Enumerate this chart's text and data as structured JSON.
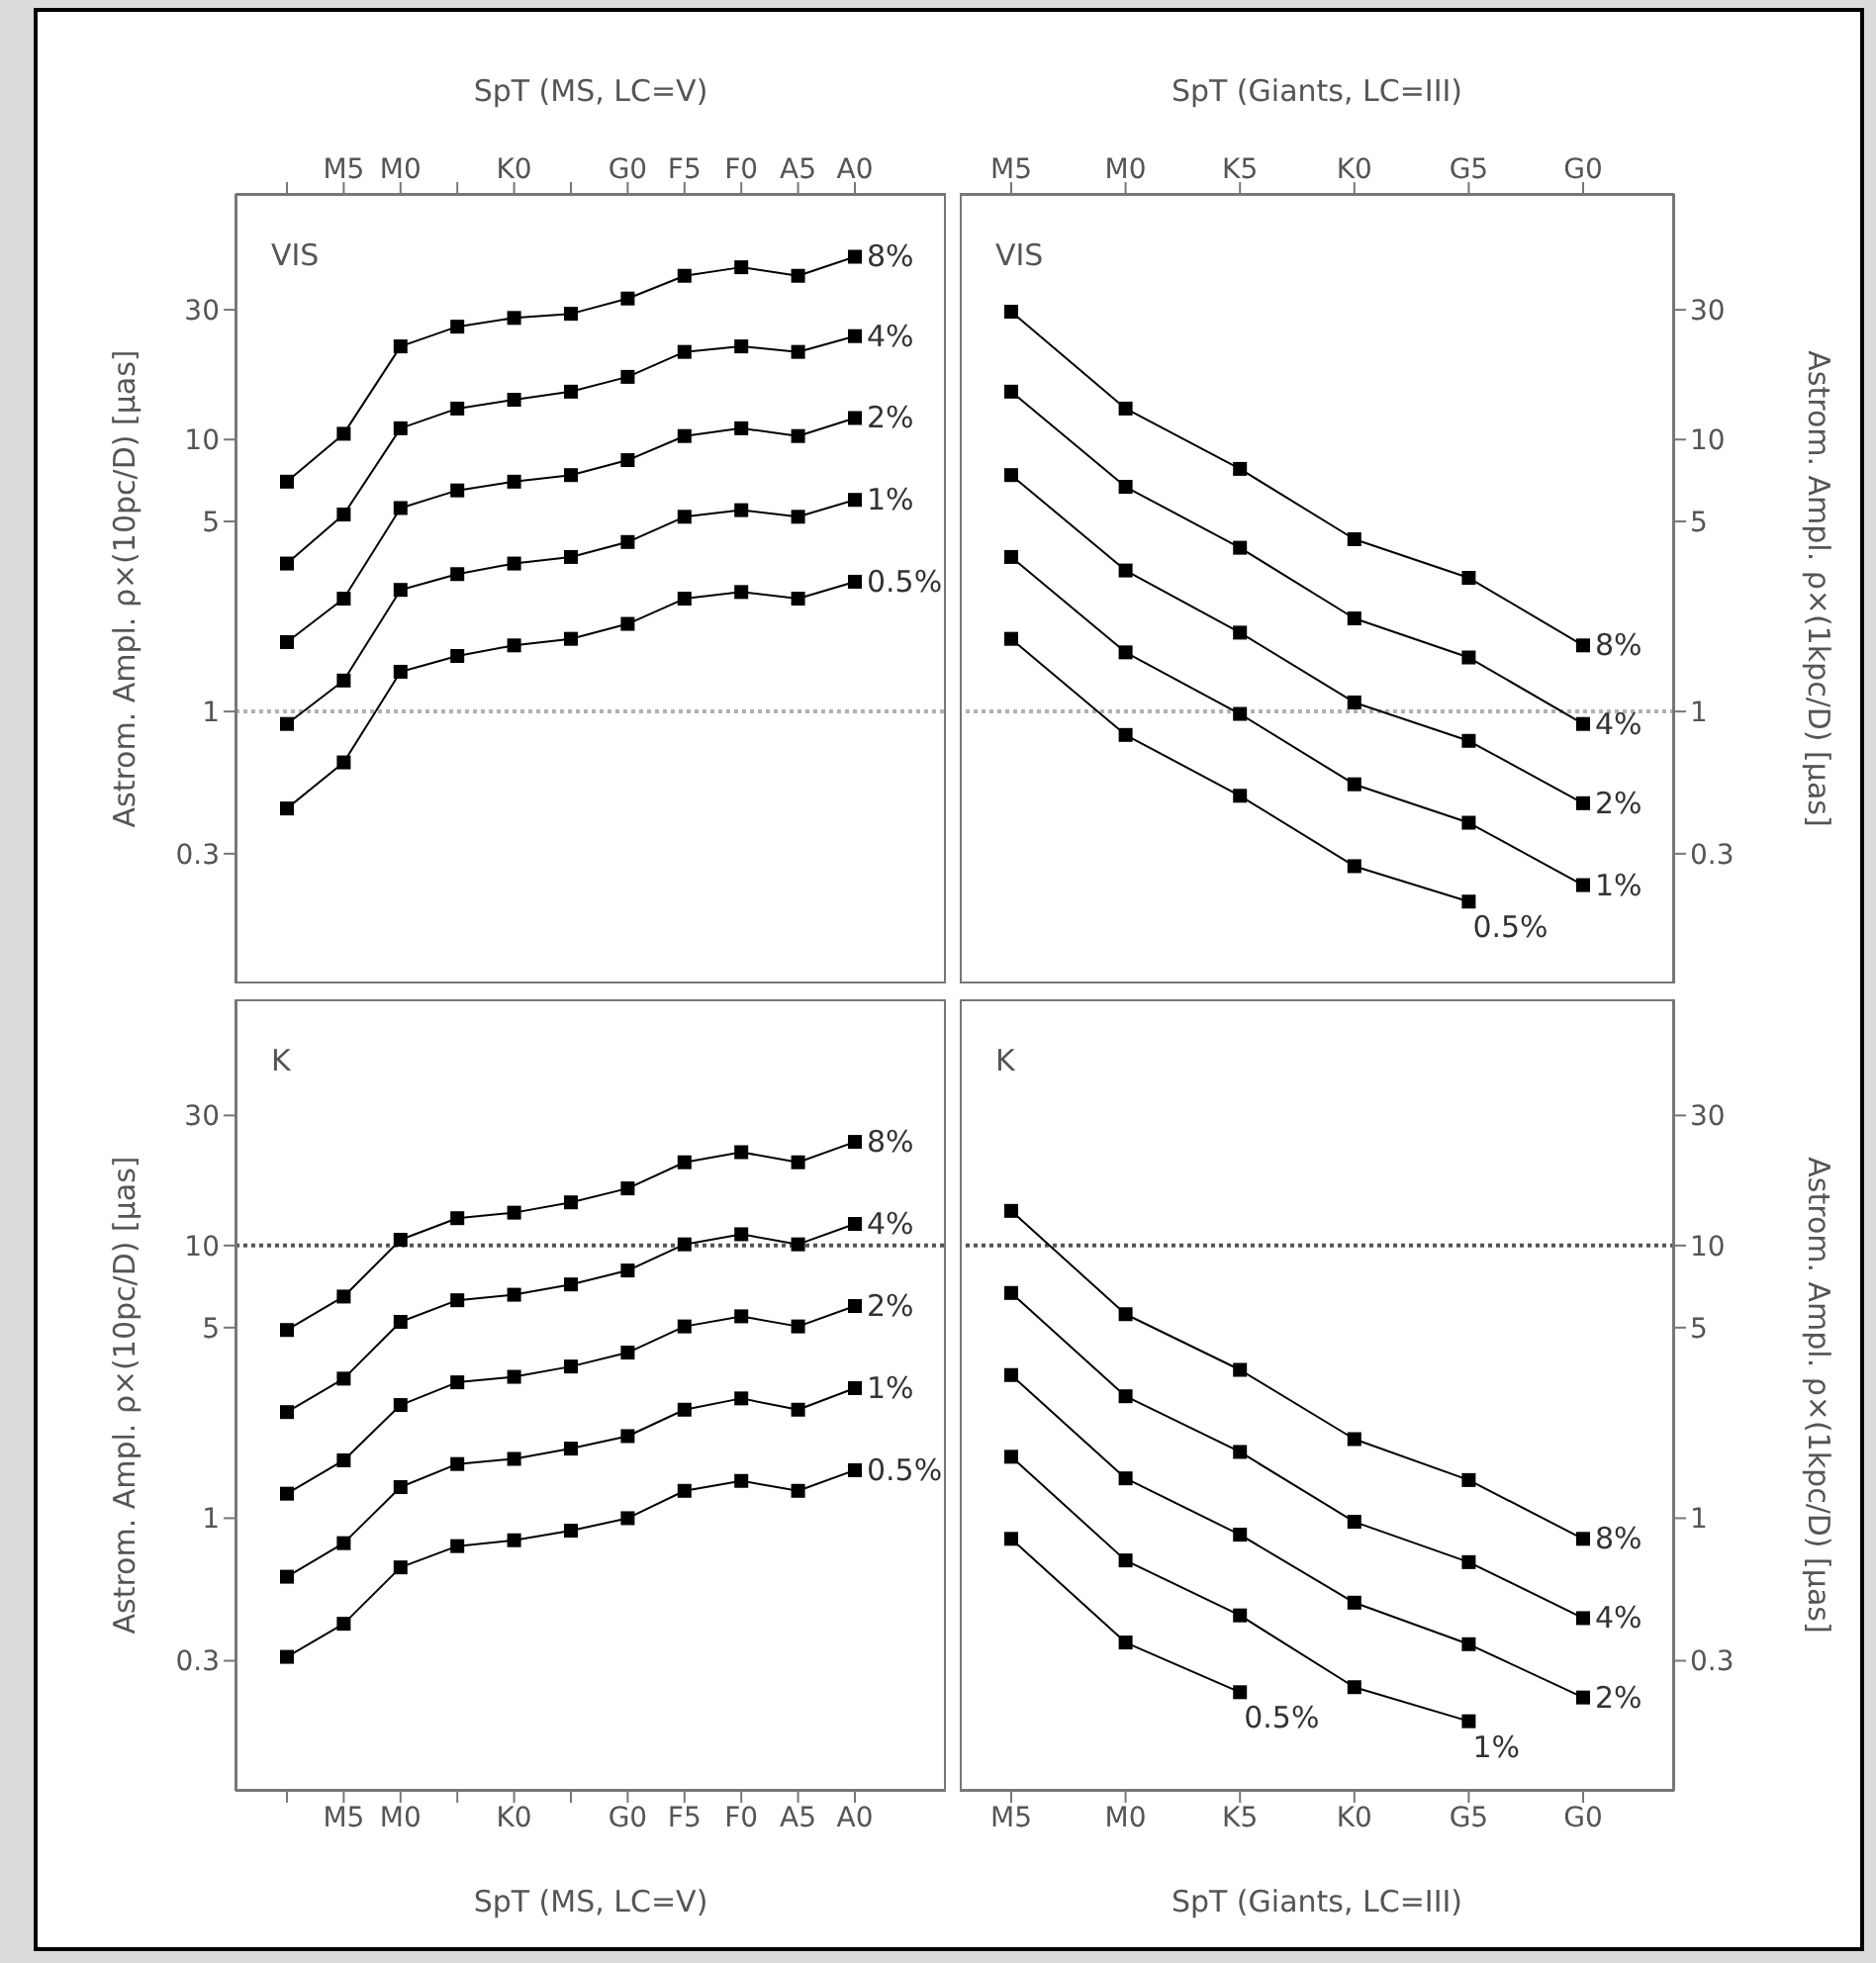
{
  "chart_data": [
    {
      "type": "line",
      "x2label": "SpT (MS, LC=V)",
      "ylabel": "Astrom. Ampl. ρ×(10pc/D) [μas]",
      "annotations": [
        "VIS"
      ],
      "log": "y",
      "marker": "square",
      "line_style": "solid",
      "categories": [
        null,
        "M5",
        "M0",
        null,
        "K0",
        null,
        "G0",
        "F5",
        "F0",
        "A5",
        "A0"
      ],
      "ylim": [
        0.1,
        80
      ],
      "yticks": [
        0.3,
        1,
        5,
        10,
        30
      ],
      "ref_lines": [
        {
          "axis": "y",
          "value": 1,
          "color": "#b0b0b0",
          "line_style": "dotted"
        }
      ],
      "series": [
        {
          "name": "8%",
          "color": "#000000",
          "values": [
            7.0,
            10.5,
            22,
            26,
            28,
            29,
            33,
            40,
            43,
            40,
            47
          ]
        },
        {
          "name": "4%",
          "color": "#000000",
          "values": [
            3.5,
            5.3,
            11,
            13,
            14,
            15,
            17,
            21,
            22,
            21,
            24
          ]
        },
        {
          "name": "2%",
          "color": "#000000",
          "values": [
            1.8,
            2.6,
            5.6,
            6.5,
            7.0,
            7.4,
            8.4,
            10.3,
            11,
            10.3,
            12
          ]
        },
        {
          "name": "1%",
          "color": "#000000",
          "values": [
            0.9,
            1.3,
            2.8,
            3.2,
            3.5,
            3.7,
            4.2,
            5.2,
            5.5,
            5.2,
            6.0
          ]
        },
        {
          "name": "0.5%",
          "color": "#000000",
          "values": [
            0.44,
            0.65,
            1.4,
            1.6,
            1.75,
            1.85,
            2.1,
            2.6,
            2.75,
            2.6,
            3.0
          ]
        }
      ]
    },
    {
      "type": "line",
      "x2label": "SpT (Giants, LC=III)",
      "y2label": "Astrom. Ampl. ρ×(1kpc/D) [μas]",
      "annotations": [
        "VIS"
      ],
      "log": "y2",
      "marker": "square",
      "line_style": "solid",
      "categories": [
        "M5",
        "M0",
        "K5",
        "K0",
        "G5",
        "G0"
      ],
      "y2lim": [
        0.1,
        80
      ],
      "y2ticks": [
        0.3,
        1,
        5,
        10,
        30
      ],
      "ref_lines": [
        {
          "axis": "y2",
          "value": 1,
          "color": "#b0b0b0",
          "line_style": "dotted"
        }
      ],
      "series": [
        {
          "name": "8%",
          "color": "#000000",
          "axis": "y2",
          "values": [
            29.5,
            13,
            7.8,
            4.3,
            3.1,
            1.75
          ]
        },
        {
          "name": "4%",
          "color": "#000000",
          "axis": "y2",
          "values": [
            15,
            6.7,
            4.0,
            2.2,
            1.58,
            0.9
          ]
        },
        {
          "name": "2%",
          "color": "#000000",
          "axis": "y2",
          "values": [
            7.4,
            3.3,
            1.95,
            1.08,
            0.78,
            0.46
          ]
        },
        {
          "name": "1%",
          "color": "#000000",
          "axis": "y2",
          "values": [
            3.7,
            1.65,
            0.98,
            0.54,
            0.39,
            0.23
          ]
        },
        {
          "name": "0.5%",
          "color": "#000000",
          "axis": "y2",
          "values": [
            1.85,
            0.82,
            0.49,
            0.27,
            0.2,
            null
          ]
        }
      ]
    },
    {
      "type": "line",
      "xlabel": "SpT (MS, LC=V)",
      "ylabel": "Astrom. Ampl. ρ×(10pc/D) [μas]",
      "annotations": [
        "K"
      ],
      "log": "y",
      "marker": "square",
      "line_style": "solid",
      "categories": [
        null,
        "M5",
        "M0",
        null,
        "K0",
        null,
        "G0",
        "F5",
        "F0",
        "A5",
        "A0"
      ],
      "ylim": [
        0.1,
        80
      ],
      "yticks": [
        0.3,
        1,
        5,
        10,
        30
      ],
      "ref_lines": [
        {
          "axis": "y",
          "value": 10,
          "color": "#555555",
          "line_style": "dotted"
        }
      ],
      "series": [
        {
          "name": "8%",
          "color": "#000000",
          "values": [
            4.9,
            6.5,
            10.5,
            12.6,
            13.2,
            14.4,
            16.2,
            20.2,
            22,
            20.2,
            24
          ]
        },
        {
          "name": "4%",
          "color": "#000000",
          "values": [
            2.45,
            3.25,
            5.25,
            6.3,
            6.6,
            7.2,
            8.1,
            10.1,
            11,
            10.1,
            12
          ]
        },
        {
          "name": "2%",
          "color": "#000000",
          "values": [
            1.23,
            1.63,
            2.6,
            3.15,
            3.3,
            3.6,
            4.05,
            5.05,
            5.5,
            5.05,
            6.0
          ]
        },
        {
          "name": "1%",
          "color": "#000000",
          "values": [
            0.61,
            0.81,
            1.3,
            1.58,
            1.65,
            1.8,
            2.0,
            2.5,
            2.75,
            2.5,
            3.0
          ]
        },
        {
          "name": "0.5%",
          "color": "#000000",
          "values": [
            0.31,
            0.41,
            0.66,
            0.79,
            0.83,
            0.9,
            1.0,
            1.26,
            1.37,
            1.26,
            1.5
          ]
        }
      ]
    },
    {
      "type": "line",
      "xlabel": "SpT (Giants, LC=III)",
      "y2label": "Astrom. Ampl. ρ×(1kpc/D) [μas]",
      "annotations": [
        "K"
      ],
      "log": "y2",
      "marker": "square",
      "line_style": "solid",
      "categories": [
        "M5",
        "M0",
        "K5",
        "K0",
        "G5",
        "G0"
      ],
      "y2lim": [
        0.1,
        80
      ],
      "y2ticks": [
        0.3,
        1,
        5,
        10,
        30
      ],
      "ref_lines": [
        {
          "axis": "y2",
          "value": 10,
          "color": "#555555",
          "line_style": "dotted"
        }
      ],
      "series": [
        {
          "name": "8%",
          "color": "#000000",
          "axis": "y2",
          "values": [
            13.4,
            5.6,
            3.5,
            1.95,
            1.38,
            0.84
          ]
        },
        {
          "name": "4%",
          "color": "#000000",
          "axis": "y2",
          "values": [
            6.7,
            2.8,
            1.75,
            0.97,
            0.69,
            0.43
          ]
        },
        {
          "name": "2%",
          "color": "#000000",
          "axis": "y2",
          "values": [
            3.35,
            1.4,
            0.87,
            0.49,
            0.345,
            0.22
          ]
        },
        {
          "name": "1%",
          "color": "#000000",
          "axis": "y2",
          "values": [
            1.68,
            0.7,
            0.44,
            0.24,
            0.18,
            null
          ]
        },
        {
          "name": "0.5%",
          "color": "#000000",
          "axis": "y2",
          "values": [
            0.84,
            0.35,
            0.23,
            null,
            null,
            null
          ]
        }
      ]
    }
  ]
}
